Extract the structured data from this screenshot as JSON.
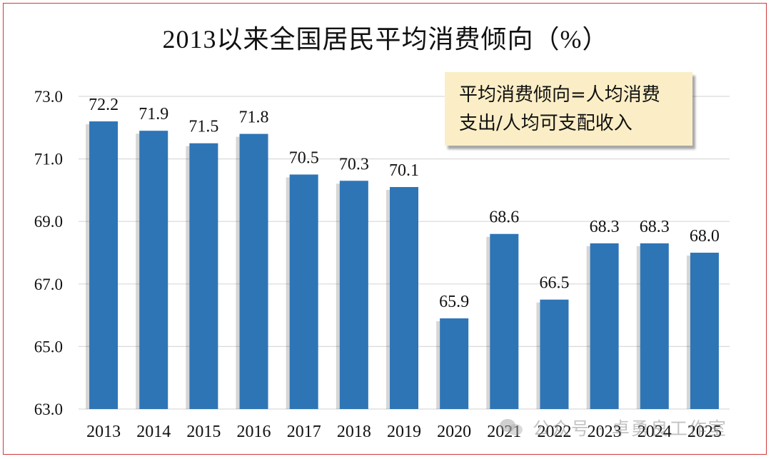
{
  "chart_data": {
    "type": "bar",
    "title": "2013以来全国居民平均消费倾向（%）",
    "categories": [
      "2013",
      "2014",
      "2015",
      "2016",
      "2017",
      "2018",
      "2019",
      "2020",
      "2021",
      "2022",
      "2023",
      "2024",
      "2025"
    ],
    "values": [
      72.2,
      71.9,
      71.5,
      71.8,
      70.5,
      70.3,
      70.1,
      65.9,
      68.6,
      66.5,
      68.3,
      68.3,
      68.0
    ],
    "value_labels": [
      "72.2",
      "71.9",
      "71.5",
      "71.8",
      "70.5",
      "70.3",
      "70.1",
      "65.9",
      "68.6",
      "66.5",
      "68.3",
      "68.3",
      "68.0"
    ],
    "ylim": [
      63,
      73
    ],
    "yticks": [
      63,
      65,
      67,
      69,
      71,
      73
    ],
    "ytick_labels": [
      "63.0",
      "65.0",
      "67.0",
      "69.0",
      "71.0",
      "73.0"
    ],
    "xlabel": "",
    "ylabel": "",
    "grid": true,
    "bar_color": "#2e75b6",
    "annotation": [
      "平均消费倾向=人均消费",
      "支出/人均可支配收入"
    ]
  },
  "watermark": {
    "icon": "wechat-bubble-icon",
    "text": "公众号 · 卓勇良工作室"
  }
}
